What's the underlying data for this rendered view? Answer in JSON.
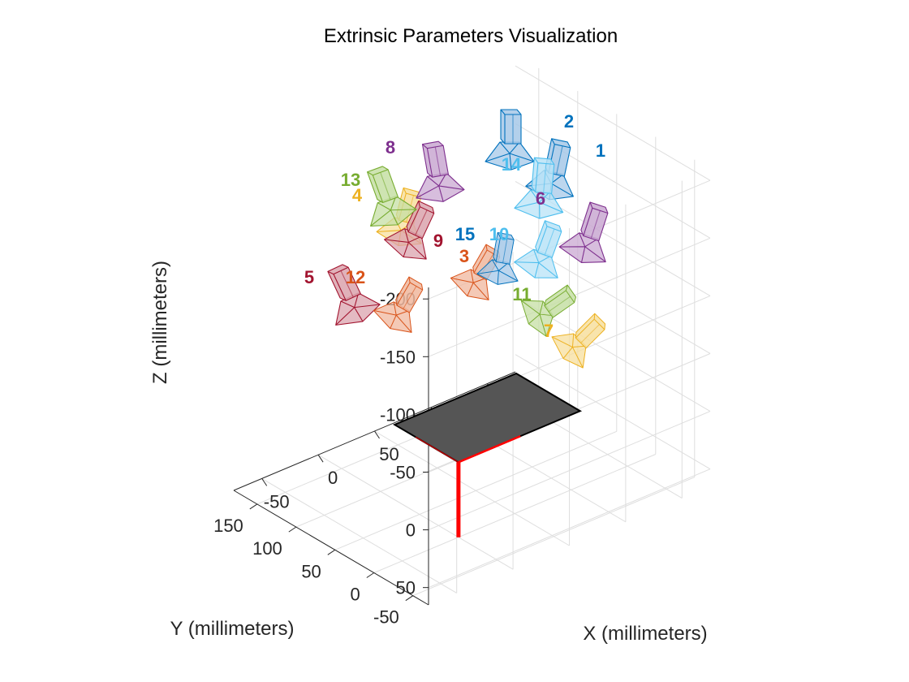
{
  "chart_data": {
    "type": "3d-scatter",
    "title": "Extrinsic Parameters Visualization",
    "xlabel": "X (millimeters)",
    "ylabel": "Y (millimeters)",
    "zlabel": "Z (millimeters)",
    "x_ticks": [
      "-50",
      "0",
      "50",
      "100",
      "150"
    ],
    "y_ticks": [
      "-50",
      "0",
      "50",
      "100",
      "150"
    ],
    "z_ticks": [
      "-200",
      "-150",
      "-100",
      "-50",
      "0",
      "50"
    ],
    "xlim": [
      -75,
      175
    ],
    "ylim": [
      -70,
      180
    ],
    "zlim": [
      -210,
      65
    ],
    "z_reversed": true,
    "grid": true,
    "checkerboard": {
      "color": "#555555",
      "origin_axis_color": "#ff0000"
    },
    "cameras": [
      {
        "id": "1",
        "color": "#0072bd",
        "light": "#a6c8e8"
      },
      {
        "id": "2",
        "color": "#0072bd",
        "light": "#a6c8e8"
      },
      {
        "id": "3",
        "color": "#d95319",
        "light": "#f0b79e"
      },
      {
        "id": "4",
        "color": "#edb120",
        "light": "#f7df9e"
      },
      {
        "id": "5",
        "color": "#a2142f",
        "light": "#dba3ad"
      },
      {
        "id": "6",
        "color": "#7e2f8e",
        "light": "#c9a8d1"
      },
      {
        "id": "7",
        "color": "#edb120",
        "light": "#f7df9e"
      },
      {
        "id": "8",
        "color": "#7e2f8e",
        "light": "#c9a8d1"
      },
      {
        "id": "9",
        "color": "#a2142f",
        "light": "#dba3ad"
      },
      {
        "id": "10",
        "color": "#4dbeee",
        "light": "#b8e3f7"
      },
      {
        "id": "11",
        "color": "#77ac30",
        "light": "#c6dfa4"
      },
      {
        "id": "12",
        "color": "#d95319",
        "light": "#f0b79e"
      },
      {
        "id": "13",
        "color": "#77ac30",
        "light": "#c6dfa4"
      },
      {
        "id": "14",
        "color": "#4dbeee",
        "light": "#b8e3f7"
      },
      {
        "id": "15",
        "color": "#0072bd",
        "light": "#a6c8e8"
      }
    ]
  }
}
